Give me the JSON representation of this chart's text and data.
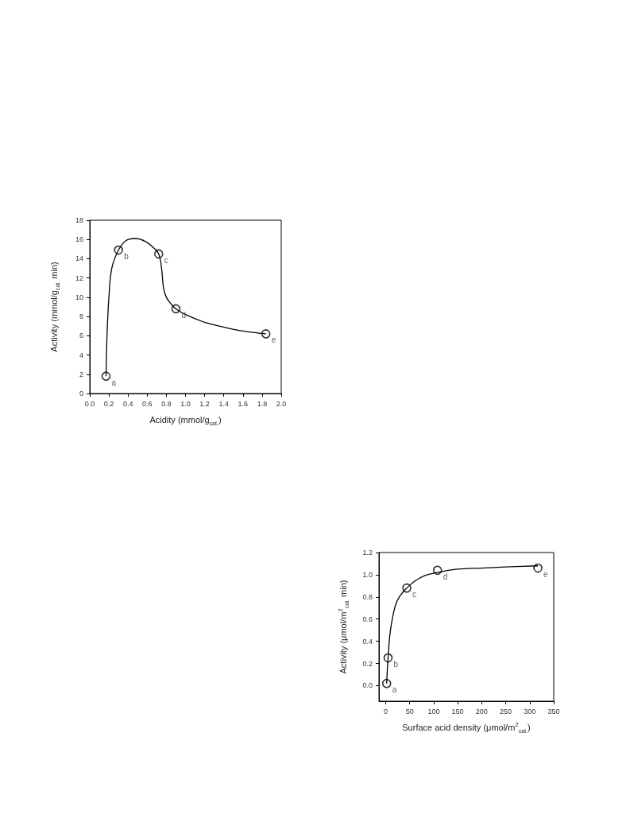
{
  "chart_data": [
    {
      "type": "scatter",
      "xlabel": "Acidity (mmol/g$_{cat.}$)",
      "ylabel": "Activity (mmol/g$_{cat.}$ min)",
      "xlim": [
        0,
        2
      ],
      "ylim": [
        0,
        18
      ],
      "xticks": [
        {
          "value": 0,
          "label": "0.0"
        },
        {
          "value": 0.2,
          "label": "0.2"
        },
        {
          "value": 0.4,
          "label": "0.4"
        },
        {
          "value": 0.6,
          "label": "0.6"
        },
        {
          "value": 0.8,
          "label": "0.8"
        },
        {
          "value": 1,
          "label": "1.0"
        },
        {
          "value": 1.2,
          "label": "1.2"
        },
        {
          "value": 1.4,
          "label": "1.4"
        },
        {
          "value": 1.6,
          "label": "1.6"
        },
        {
          "value": 1.8,
          "label": "1.8"
        },
        {
          "value": 2,
          "label": "2.0"
        }
      ],
      "yticks": [
        0,
        2,
        4,
        6,
        8,
        10,
        12,
        14,
        16,
        18
      ],
      "marker": "circle",
      "grid": false,
      "series": [
        {
          "type": "scatter",
          "color": "#000000",
          "x": [
            0.17,
            0.3,
            0.72,
            0.9,
            1.84
          ],
          "values": [
            1.8,
            14.9,
            14.5,
            8.8,
            6.2
          ]
        },
        {
          "type": "line",
          "color": "#000000",
          "marker": "none",
          "x": [
            0.17,
            0.18,
            0.2,
            0.23,
            0.3,
            0.38,
            0.48,
            0.58,
            0.66,
            0.72,
            0.75,
            0.77,
            0.8,
            0.85,
            0.9,
            1.0,
            1.2,
            1.4,
            1.6,
            1.84
          ],
          "values": [
            1.8,
            6,
            10,
            13,
            14.9,
            15.9,
            16.1,
            15.8,
            15.2,
            14.5,
            13,
            11,
            10,
            9.3,
            8.8,
            8.2,
            7.4,
            6.9,
            6.5,
            6.2
          ]
        }
      ],
      "annotations": [
        {
          "text": "a",
          "x": 0.17,
          "y": 1.8
        },
        {
          "text": "b",
          "x": 0.3,
          "y": 14.9
        },
        {
          "text": "c",
          "x": 0.72,
          "y": 14.5
        },
        {
          "text": "d",
          "x": 0.9,
          "y": 8.8
        },
        {
          "text": "e",
          "x": 1.84,
          "y": 6.2
        }
      ]
    },
    {
      "type": "scatter",
      "xlabel": "Surface acid density (μmol/m$^{2}$$_{cat.}$)",
      "ylabel": "Activity (μmol/m$^{2}$$_{cat.}$ min)",
      "xlim": [
        -14,
        350
      ],
      "ylim": [
        -0.14,
        1.2
      ],
      "xticks": [
        0,
        50,
        100,
        150,
        200,
        250,
        300,
        350
      ],
      "yticks": [
        {
          "value": 0,
          "label": "0.0"
        },
        {
          "value": 0.2,
          "label": "0.2"
        },
        {
          "value": 0.4,
          "label": "0.4"
        },
        {
          "value": 0.6,
          "label": "0.6"
        },
        {
          "value": 0.8,
          "label": "0.8"
        },
        {
          "value": 1,
          "label": "1.0"
        },
        {
          "value": 1.2,
          "label": "1.2"
        }
      ],
      "marker": "circle",
      "grid": false,
      "series": [
        {
          "type": "scatter",
          "color": "#000000",
          "x": [
            2,
            5,
            44,
            108,
            317
          ],
          "values": [
            0.02,
            0.25,
            0.88,
            1.04,
            1.06
          ]
        },
        {
          "type": "line",
          "color": "#000000",
          "marker": "none",
          "x": [
            2,
            5,
            10,
            20,
            30,
            44,
            60,
            80,
            108,
            150,
            200,
            250,
            317
          ],
          "values": [
            0.02,
            0.25,
            0.5,
            0.72,
            0.81,
            0.88,
            0.94,
            0.99,
            1.02,
            1.05,
            1.06,
            1.07,
            1.08
          ]
        }
      ],
      "annotations": [
        {
          "text": "a",
          "x": 2,
          "y": 0.02
        },
        {
          "text": "b",
          "x": 5,
          "y": 0.25
        },
        {
          "text": "c",
          "x": 44,
          "y": 0.88
        },
        {
          "text": "d",
          "x": 108,
          "y": 1.04
        },
        {
          "text": "e",
          "x": 317,
          "y": 1.06
        }
      ]
    }
  ]
}
